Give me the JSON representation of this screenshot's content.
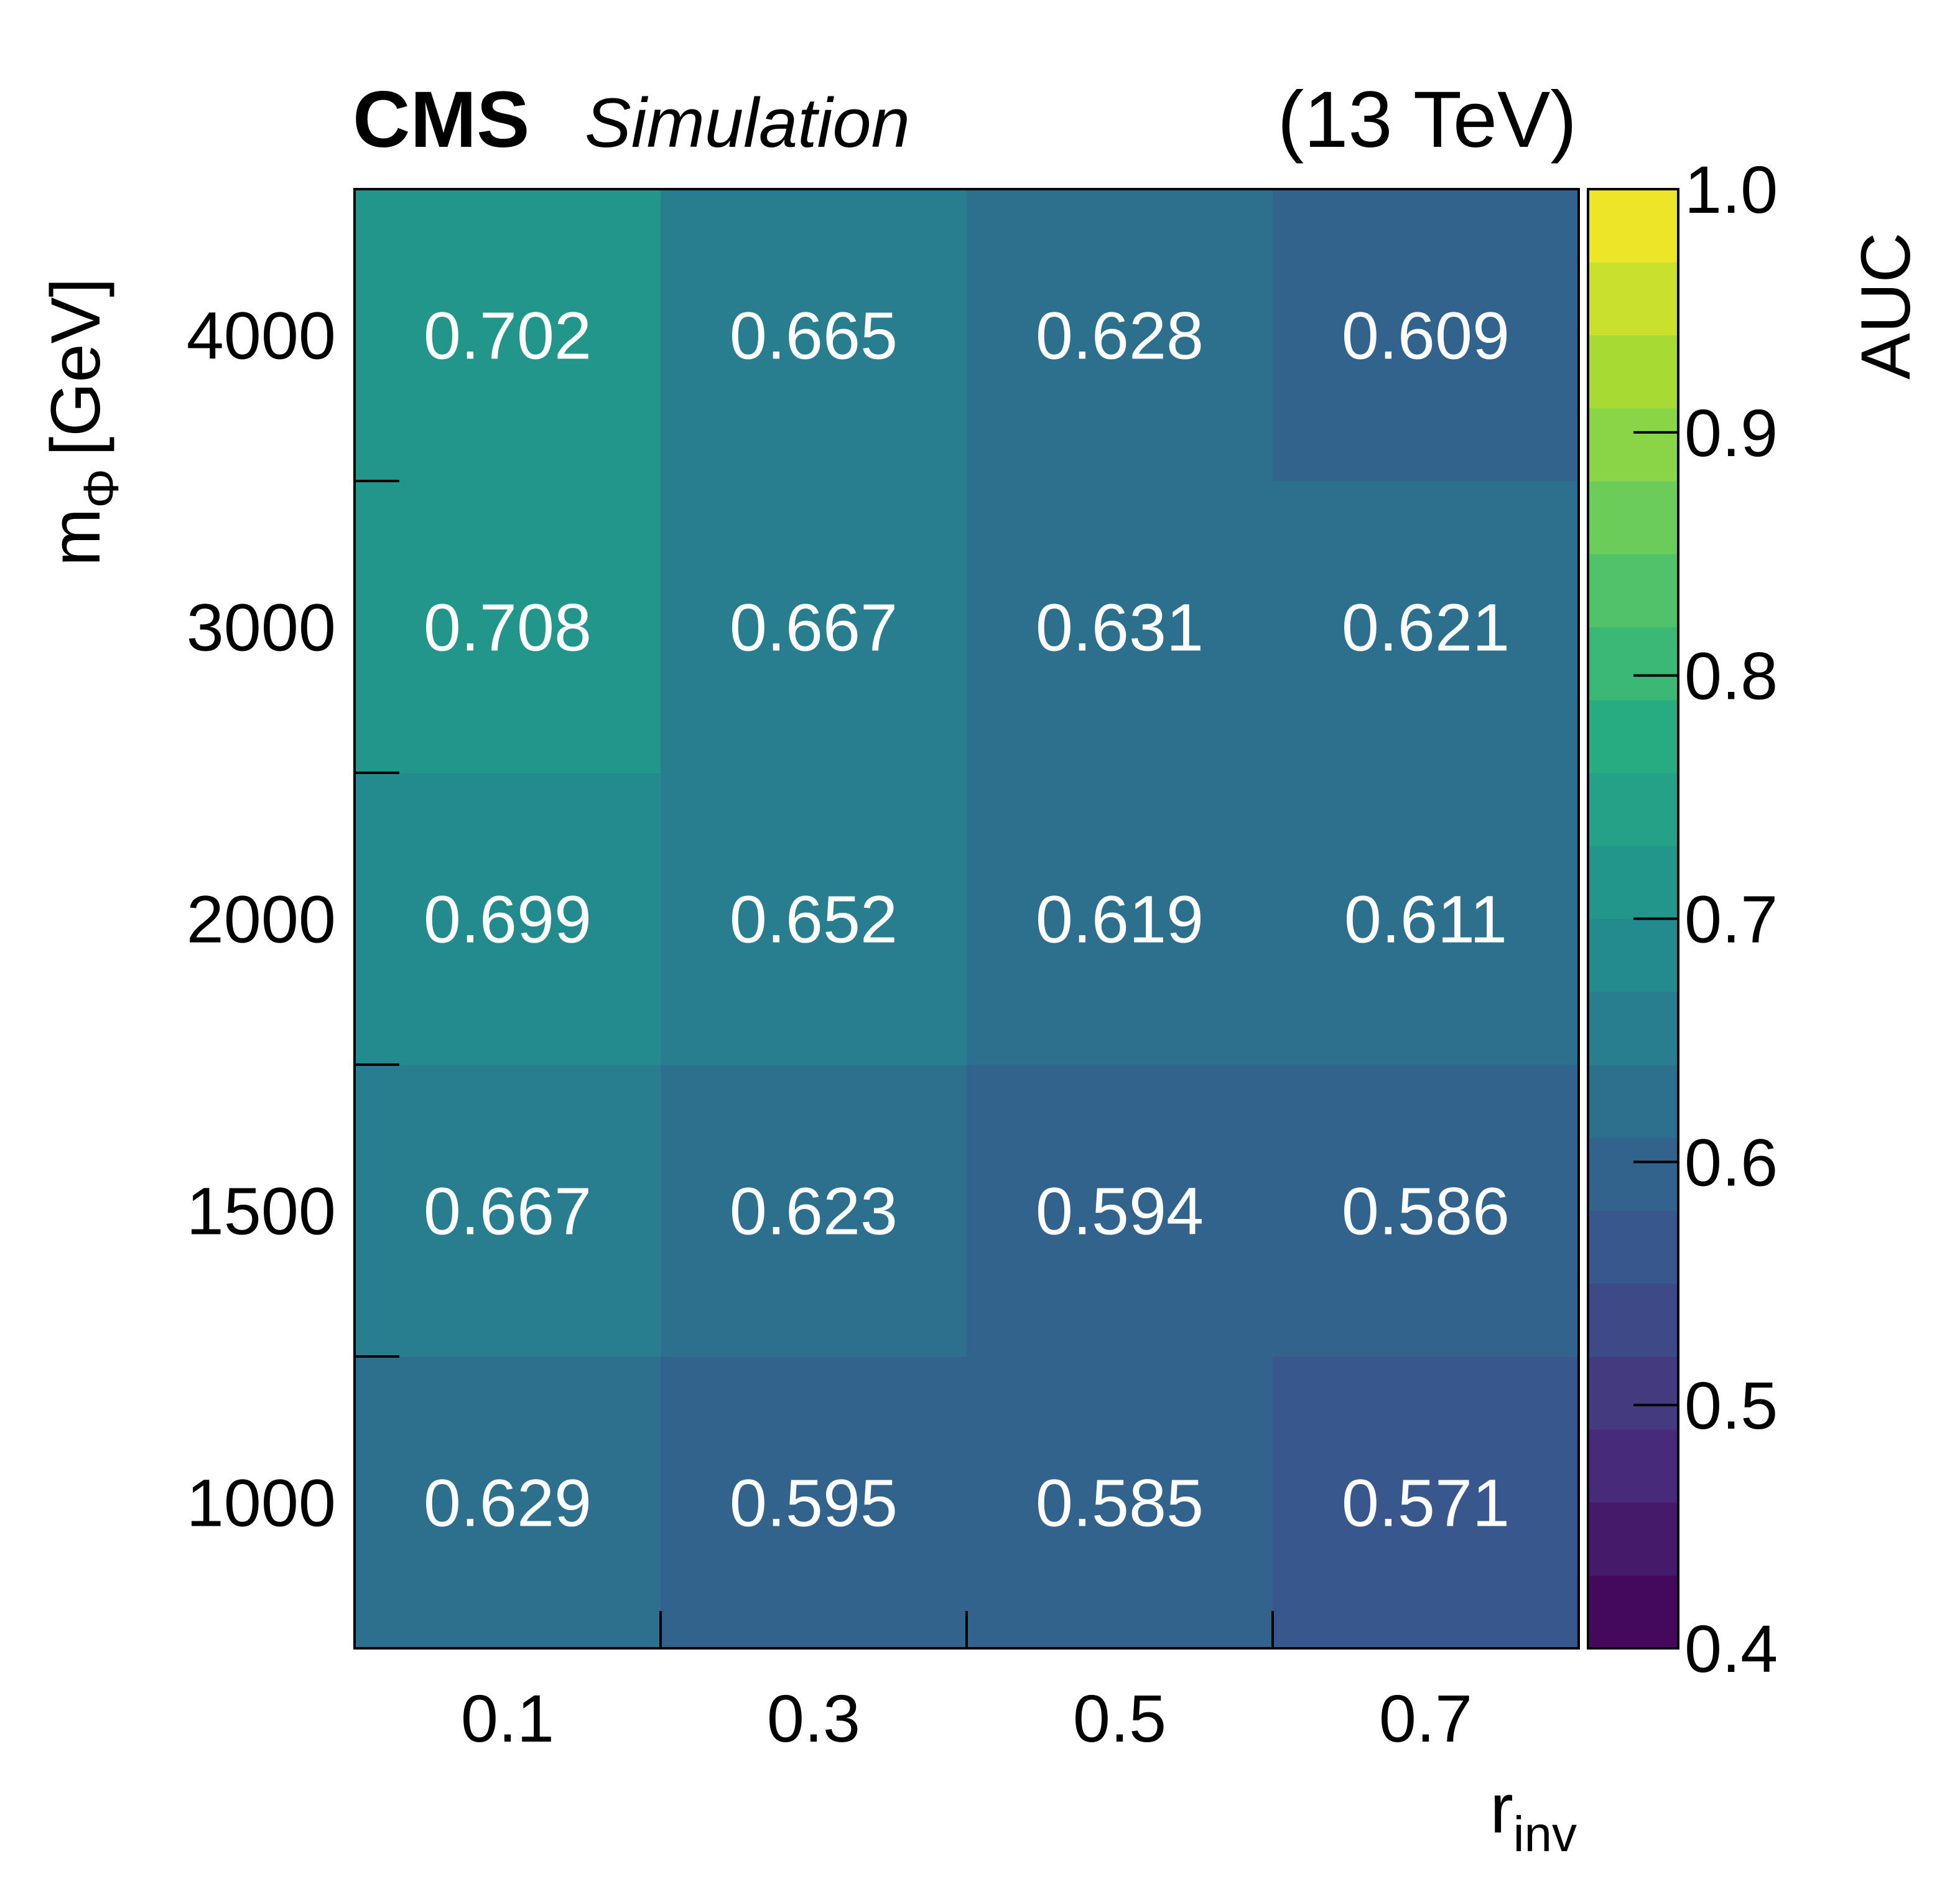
{
  "header": {
    "experiment": "CMS",
    "tag": "Simulation",
    "energy": "(13 TeV)"
  },
  "chart_data": {
    "type": "heatmap",
    "title": "",
    "xlabel": {
      "main": "r",
      "sub": "inv"
    },
    "ylabel": {
      "main": "m",
      "sub": "Φ",
      "unit": "[GeV]"
    },
    "x_categories": [
      "0.1",
      "0.3",
      "0.5",
      "0.7"
    ],
    "y_categories": [
      "1000",
      "1500",
      "2000",
      "3000",
      "4000"
    ],
    "values": [
      [
        0.629,
        0.595,
        0.585,
        0.571
      ],
      [
        0.667,
        0.623,
        0.594,
        0.586
      ],
      [
        0.699,
        0.652,
        0.619,
        0.611
      ],
      [
        0.708,
        0.667,
        0.631,
        0.621
      ],
      [
        0.702,
        0.665,
        0.628,
        0.609
      ]
    ],
    "value_labels": [
      [
        "0.629",
        "0.595",
        "0.585",
        "0.571"
      ],
      [
        "0.667",
        "0.623",
        "0.594",
        "0.586"
      ],
      [
        "0.699",
        "0.652",
        "0.619",
        "0.611"
      ],
      [
        "0.708",
        "0.667",
        "0.631",
        "0.621"
      ],
      [
        "0.702",
        "0.665",
        "0.628",
        "0.609"
      ]
    ],
    "colorbar": {
      "label": "AUC",
      "range": [
        0.4,
        1.0
      ],
      "n_bands": 20,
      "ticks": [
        "0.4",
        "0.5",
        "0.6",
        "0.7",
        "0.8",
        "0.9",
        "1.0"
      ],
      "colormap": "viridis"
    }
  }
}
